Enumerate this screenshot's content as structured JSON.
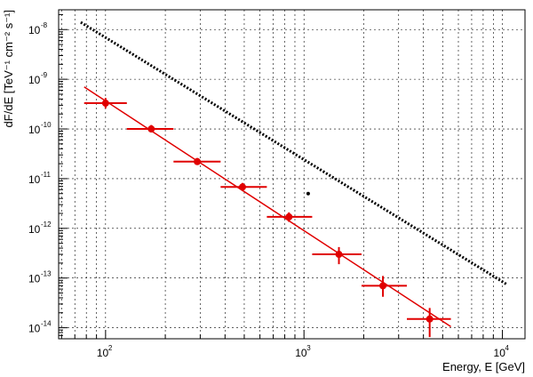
{
  "chart_data": {
    "type": "scatter",
    "title": "",
    "xlabel": "Energy, E [GeV]",
    "ylabel": "dF/dE [TeV⁻¹ cm⁻² s⁻¹]",
    "x_scale": "log",
    "y_scale": "log",
    "xlim": [
      58,
      13000
    ],
    "ylim": [
      6e-15,
      2.5e-08
    ],
    "grid": true,
    "x_ticks": [
      {
        "value": 100,
        "base": "10",
        "exp": "2"
      },
      {
        "value": 1000,
        "base": "10",
        "exp": "3"
      },
      {
        "value": 10000,
        "base": "10",
        "exp": "4"
      }
    ],
    "y_ticks": [
      {
        "value": 1e-14,
        "base": "10",
        "exp": "-14"
      },
      {
        "value": 1e-13,
        "base": "10",
        "exp": "-13"
      },
      {
        "value": 1e-12,
        "base": "10",
        "exp": "-12"
      },
      {
        "value": 1e-11,
        "base": "10",
        "exp": "-11"
      },
      {
        "value": 1e-10,
        "base": "10",
        "exp": "-10"
      },
      {
        "value": 1e-09,
        "base": "10",
        "exp": "-9"
      },
      {
        "value": 1e-08,
        "base": "10",
        "exp": "-8"
      }
    ],
    "series": [
      {
        "type": "errorbar",
        "color": "#e00000",
        "points": [
          {
            "x": 100,
            "y": 3.3e-10,
            "xlo": 78,
            "xhi": 128,
            "ylo": 2.6e-10,
            "yhi": 4.2e-10
          },
          {
            "x": 170,
            "y": 1e-10,
            "xlo": 128,
            "xhi": 220,
            "ylo": 8.5e-11,
            "yhi": 1.2e-10
          },
          {
            "x": 290,
            "y": 2.2e-11,
            "xlo": 220,
            "xhi": 380,
            "ylo": 1.9e-11,
            "yhi": 2.6e-11
          },
          {
            "x": 490,
            "y": 6.8e-12,
            "xlo": 380,
            "xhi": 650,
            "ylo": 5.6e-12,
            "yhi": 8.2e-12
          },
          {
            "x": 840,
            "y": 1.7e-12,
            "xlo": 650,
            "xhi": 1100,
            "ylo": 1.35e-12,
            "yhi": 2.1e-12
          },
          {
            "x": 1500,
            "y": 3e-13,
            "xlo": 1100,
            "xhi": 1950,
            "ylo": 1.9e-13,
            "yhi": 4.2e-13
          },
          {
            "x": 2500,
            "y": 7e-14,
            "xlo": 1950,
            "xhi": 3300,
            "ylo": 4.2e-14,
            "yhi": 1.1e-13
          },
          {
            "x": 4300,
            "y": 1.5e-14,
            "xlo": 3300,
            "xhi": 5500,
            "ylo": 6.5e-15,
            "yhi": 2.5e-14
          }
        ]
      },
      {
        "type": "line",
        "style": "solid",
        "color": "#e00000",
        "x": [
          78,
          5500
        ],
        "y": [
          7e-10,
          1.05e-14
        ]
      },
      {
        "type": "line",
        "style": "dotted",
        "color": "#000000",
        "x": [
          75,
          10500
        ],
        "y": [
          1.4e-08,
          7.5e-14
        ]
      },
      {
        "type": "point",
        "color": "#000000",
        "x": [
          1050
        ],
        "y": [
          5e-12
        ]
      }
    ]
  }
}
